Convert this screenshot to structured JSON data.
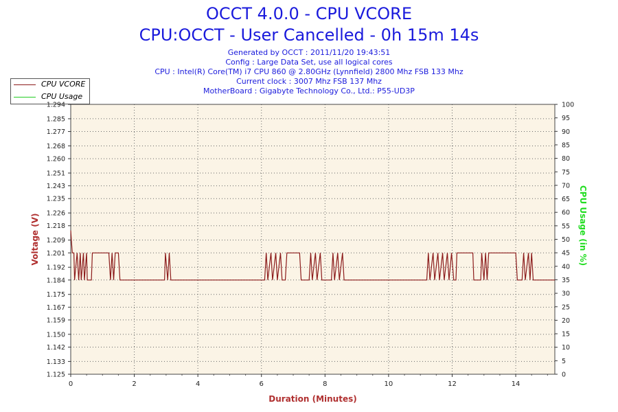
{
  "header": {
    "title": "OCCT 4.0.0 - CPU VCORE",
    "subtitle": "CPU:OCCT - User Cancelled - 0h 15m 14s",
    "info_lines": [
      "Generated by OCCT : 2011/11/20 19:43:51",
      "Config : Large Data Set, use all logical cores",
      "CPU : Intel(R) Core(TM) i7 CPU 860 @ 2.80GHz (Lynnfield) 2800 Mhz FSB 133 Mhz",
      "Current clock : 3007 Mhz FSB 137 Mhz",
      "MotherBoard : Gigabyte Technology Co., Ltd.: P55-UD3P"
    ]
  },
  "legend": {
    "items": [
      {
        "label": "CPU VCORE",
        "color": "#8b1a1a"
      },
      {
        "label": "CPU Usage",
        "color": "#22cc22"
      }
    ]
  },
  "colors": {
    "title": "#1a1adc",
    "axis_label_left": "#b03030",
    "axis_label_right": "#22dd22",
    "plot_bg": "#fbf4e6",
    "vcore_line": "#8b1a1a"
  },
  "chart_data": {
    "type": "line",
    "xlabel": "Duration (Minutes)",
    "ylabel": "Voltage (V)",
    "y2label": "CPU Usage (in %)",
    "xlim": [
      0,
      15.23
    ],
    "ylim": [
      1.125,
      1.294
    ],
    "y2lim": [
      0,
      100
    ],
    "x_ticks": [
      0,
      2,
      4,
      6,
      8,
      10,
      12,
      14
    ],
    "y_ticks": [
      "1.125",
      "1.133",
      "1.142",
      "1.150",
      "1.159",
      "1.167",
      "1.175",
      "1.184",
      "1.192",
      "1.201",
      "1.209",
      "1.218",
      "1.226",
      "1.235",
      "1.243",
      "1.251",
      "1.260",
      "1.268",
      "1.277",
      "1.285",
      "1.294"
    ],
    "y2_ticks": [
      0,
      5,
      10,
      15,
      20,
      25,
      30,
      35,
      40,
      45,
      50,
      55,
      60,
      65,
      70,
      75,
      80,
      85,
      90,
      95,
      100
    ],
    "grid": true,
    "legend_position": "top-left",
    "series": [
      {
        "name": "CPU VCORE",
        "points": [
          [
            0.0,
            1.215
          ],
          [
            0.02,
            1.209
          ],
          [
            0.05,
            1.201
          ],
          [
            0.1,
            1.201
          ],
          [
            0.12,
            1.184
          ],
          [
            0.2,
            1.201
          ],
          [
            0.25,
            1.184
          ],
          [
            0.3,
            1.201
          ],
          [
            0.33,
            1.184
          ],
          [
            0.4,
            1.201
          ],
          [
            0.43,
            1.184
          ],
          [
            0.5,
            1.201
          ],
          [
            0.52,
            1.184
          ],
          [
            0.65,
            1.184
          ],
          [
            0.68,
            1.201
          ],
          [
            1.2,
            1.201
          ],
          [
            1.25,
            1.184
          ],
          [
            1.3,
            1.201
          ],
          [
            1.35,
            1.184
          ],
          [
            1.4,
            1.201
          ],
          [
            1.5,
            1.201
          ],
          [
            1.55,
            1.184
          ],
          [
            2.95,
            1.184
          ],
          [
            2.98,
            1.201
          ],
          [
            3.05,
            1.184
          ],
          [
            3.1,
            1.201
          ],
          [
            3.15,
            1.184
          ],
          [
            6.1,
            1.184
          ],
          [
            6.15,
            1.201
          ],
          [
            6.2,
            1.184
          ],
          [
            6.3,
            1.201
          ],
          [
            6.35,
            1.184
          ],
          [
            6.45,
            1.201
          ],
          [
            6.5,
            1.184
          ],
          [
            6.6,
            1.201
          ],
          [
            6.65,
            1.184
          ],
          [
            6.75,
            1.184
          ],
          [
            6.8,
            1.201
          ],
          [
            7.2,
            1.201
          ],
          [
            7.25,
            1.184
          ],
          [
            7.5,
            1.184
          ],
          [
            7.55,
            1.201
          ],
          [
            7.6,
            1.184
          ],
          [
            7.7,
            1.201
          ],
          [
            7.75,
            1.184
          ],
          [
            7.85,
            1.201
          ],
          [
            7.9,
            1.184
          ],
          [
            8.2,
            1.184
          ],
          [
            8.25,
            1.201
          ],
          [
            8.3,
            1.184
          ],
          [
            8.4,
            1.201
          ],
          [
            8.45,
            1.184
          ],
          [
            8.55,
            1.201
          ],
          [
            8.6,
            1.184
          ],
          [
            11.2,
            1.184
          ],
          [
            11.25,
            1.201
          ],
          [
            11.3,
            1.184
          ],
          [
            11.4,
            1.201
          ],
          [
            11.45,
            1.184
          ],
          [
            11.55,
            1.201
          ],
          [
            11.6,
            1.184
          ],
          [
            11.7,
            1.201
          ],
          [
            11.75,
            1.184
          ],
          [
            11.85,
            1.201
          ],
          [
            11.9,
            1.184
          ],
          [
            11.98,
            1.201
          ],
          [
            12.05,
            1.184
          ],
          [
            12.12,
            1.184
          ],
          [
            12.15,
            1.201
          ],
          [
            12.65,
            1.201
          ],
          [
            12.68,
            1.184
          ],
          [
            12.9,
            1.184
          ],
          [
            12.93,
            1.201
          ],
          [
            13.0,
            1.184
          ],
          [
            13.05,
            1.201
          ],
          [
            13.1,
            1.184
          ],
          [
            13.15,
            1.201
          ],
          [
            14.0,
            1.201
          ],
          [
            14.05,
            1.184
          ],
          [
            14.2,
            1.184
          ],
          [
            14.25,
            1.201
          ],
          [
            14.3,
            1.184
          ],
          [
            14.4,
            1.201
          ],
          [
            14.45,
            1.184
          ],
          [
            14.5,
            1.201
          ],
          [
            14.55,
            1.184
          ],
          [
            15.23,
            1.184
          ]
        ]
      },
      {
        "name": "CPU Usage",
        "points": []
      }
    ]
  }
}
